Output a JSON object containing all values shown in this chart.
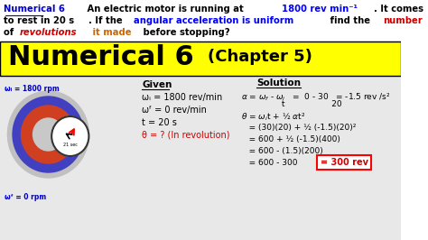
{
  "bg_color": "#ffffff",
  "yellow_bg": "#ffff00",
  "black": "#000000",
  "blue": "#0000cc",
  "red": "#cc0000",
  "dark_blue": "#00008B",
  "green": "#006400",
  "orange": "#cc6600",
  "top_text_line1_parts": [
    {
      "text": "Numerical 6",
      "color": "#0000cc",
      "bold": true,
      "underline": true
    },
    {
      "text": "   An electric motor is running at ",
      "color": "#000000",
      "bold": true
    },
    {
      "text": "1800 rev min⁻¹",
      "color": "#0000ff",
      "bold": true
    },
    {
      "text": ". It comes",
      "color": "#000000",
      "bold": true
    }
  ],
  "top_text_line2_parts": [
    {
      "text": "to rest in 20 s",
      "color": "#000000",
      "bold": true
    },
    {
      "text": ". If the ",
      "color": "#000000",
      "bold": true
    },
    {
      "text": "angular acceleration is uniform",
      "color": "#0000ff",
      "bold": true
    },
    {
      "text": " find the ",
      "color": "#000000",
      "bold": true
    },
    {
      "text": "number",
      "color": "#cc0000",
      "bold": true
    }
  ],
  "top_text_line3_parts": [
    {
      "text": "of ",
      "color": "#000000",
      "bold": true
    },
    {
      "text": "revolutions",
      "color": "#cc0000",
      "bold": true,
      "italic": true
    },
    {
      "text": " it made",
      "color": "#cc6600",
      "bold": true
    },
    {
      "text": " before stopping?",
      "color": "#000000",
      "bold": true
    }
  ],
  "title_main": "Numerical 6",
  "title_chapter": "(Chapter 5)",
  "title_main_color": "#000000",
  "title_chapter_color": "#000000",
  "title_bg": "#ffff00",
  "given_title": "Given",
  "given_lines": [
    "ωᵢ = 1800 rev/min",
    "ωᶠ = 0 rev/min",
    "t = 20 s",
    "θ = ? (In revolution)"
  ],
  "given_highlight": [
    false,
    false,
    false,
    true
  ],
  "solution_title": "Solution",
  "sol_line1": "α = ωᶠ - ωᵢ   =  0 - 30   = -1.5 rev /s²",
  "sol_line1b": "         t              20",
  "sol_line2": "θ = ωᵢt + ½ αt²",
  "sol_line3": "   = (30)(20) +  ½ (-1.5)(20)²",
  "sol_line4": "   = 600 + ½ (-1.5)(400)",
  "sol_line5": "   = 600 - (1.5)(200)",
  "sol_line6a": "   = 600 - 300 ",
  "sol_line6b": "= 300 rev",
  "wi_label": "ωᵢ = 1800 rpm",
  "wf_label": "ωᶠ = 0 rpm",
  "figsize": [
    4.74,
    2.66
  ],
  "dpi": 100
}
